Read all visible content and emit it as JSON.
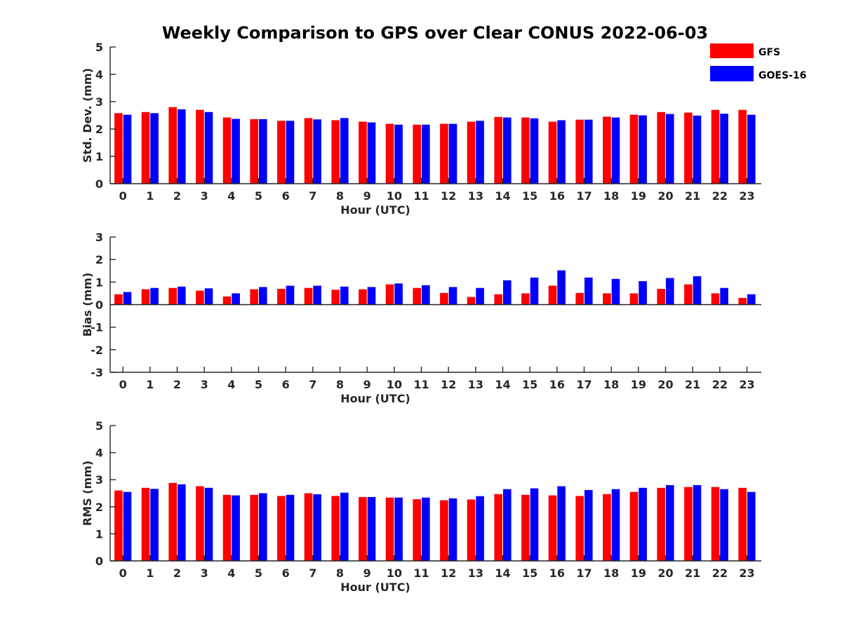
{
  "chart_data": {
    "title": "Weekly Comparison to GPS over Clear CONUS 2022-06-03",
    "legend": {
      "placement": "top-right",
      "entries": [
        {
          "name": "GFS",
          "color": "#ff0000"
        },
        {
          "name": "GOES-16",
          "color": "#0000ff"
        }
      ]
    },
    "panels": [
      {
        "type": "bar",
        "xlabel": "Hour (UTC)",
        "ylabel": "Std. Dev. (mm)",
        "ylim": [
          0,
          5
        ],
        "yticks": [
          "0",
          "1",
          "2",
          "3",
          "4",
          "5"
        ],
        "categories": [
          "0",
          "1",
          "2",
          "3",
          "4",
          "5",
          "6",
          "7",
          "8",
          "9",
          "10",
          "11",
          "12",
          "13",
          "14",
          "15",
          "16",
          "17",
          "18",
          "19",
          "20",
          "21",
          "22",
          "23"
        ],
        "series": [
          {
            "name": "GFS",
            "color": "#ff0000",
            "values": [
              2.58,
              2.62,
              2.8,
              2.7,
              2.42,
              2.36,
              2.3,
              2.4,
              2.32,
              2.27,
              2.19,
              2.16,
              2.19,
              2.27,
              2.44,
              2.42,
              2.27,
              2.34,
              2.45,
              2.52,
              2.62,
              2.6,
              2.7,
              2.7
            ]
          },
          {
            "name": "GOES-16",
            "color": "#0000ff",
            "values": [
              2.52,
              2.58,
              2.72,
              2.62,
              2.37,
              2.36,
              2.3,
              2.35,
              2.4,
              2.24,
              2.16,
              2.16,
              2.19,
              2.3,
              2.42,
              2.39,
              2.32,
              2.34,
              2.42,
              2.5,
              2.55,
              2.49,
              2.56,
              2.52
            ]
          }
        ]
      },
      {
        "type": "bar",
        "xlabel": "Hour (UTC)",
        "ylabel": "Bias (mm)",
        "ylim": [
          -3,
          3
        ],
        "yticks": [
          "-3",
          "-2",
          "-1",
          "0",
          "1",
          "2",
          "3"
        ],
        "categories": [
          "0",
          "1",
          "2",
          "3",
          "4",
          "5",
          "6",
          "7",
          "8",
          "9",
          "10",
          "11",
          "12",
          "13",
          "14",
          "15",
          "16",
          "17",
          "18",
          "19",
          "20",
          "21",
          "22",
          "23"
        ],
        "series": [
          {
            "name": "GFS",
            "color": "#ff0000",
            "values": [
              0.46,
              0.68,
              0.74,
              0.62,
              0.36,
              0.68,
              0.7,
              0.74,
              0.66,
              0.68,
              0.9,
              0.74,
              0.52,
              0.34,
              0.46,
              0.5,
              0.84,
              0.52,
              0.5,
              0.5,
              0.7,
              0.9,
              0.5,
              0.3
            ]
          },
          {
            "name": "GOES-16",
            "color": "#0000ff",
            "values": [
              0.56,
              0.74,
              0.8,
              0.72,
              0.5,
              0.78,
              0.84,
              0.84,
              0.8,
              0.78,
              0.94,
              0.86,
              0.78,
              0.74,
              1.08,
              1.2,
              1.52,
              1.2,
              1.14,
              1.04,
              1.18,
              1.26,
              0.74,
              0.46
            ]
          }
        ]
      },
      {
        "type": "bar",
        "xlabel": "Hour (UTC)",
        "ylabel": "RMS (mm)",
        "ylim": [
          0,
          5
        ],
        "yticks": [
          "0",
          "1",
          "2",
          "3",
          "4",
          "5"
        ],
        "categories": [
          "0",
          "1",
          "2",
          "3",
          "4",
          "5",
          "6",
          "7",
          "8",
          "9",
          "10",
          "11",
          "12",
          "13",
          "14",
          "15",
          "16",
          "17",
          "18",
          "19",
          "20",
          "21",
          "22",
          "23"
        ],
        "series": [
          {
            "name": "GFS",
            "color": "#ff0000",
            "values": [
              2.6,
              2.7,
              2.88,
              2.76,
              2.44,
              2.44,
              2.4,
              2.5,
              2.4,
              2.36,
              2.34,
              2.28,
              2.24,
              2.27,
              2.47,
              2.44,
              2.42,
              2.4,
              2.47,
              2.55,
              2.7,
              2.73,
              2.73,
              2.7
            ]
          },
          {
            "name": "GOES-16",
            "color": "#0000ff",
            "values": [
              2.55,
              2.66,
              2.83,
              2.7,
              2.42,
              2.5,
              2.44,
              2.46,
              2.52,
              2.36,
              2.34,
              2.34,
              2.31,
              2.39,
              2.65,
              2.68,
              2.76,
              2.62,
              2.65,
              2.7,
              2.8,
              2.8,
              2.65,
              2.55
            ]
          }
        ]
      }
    ]
  }
}
